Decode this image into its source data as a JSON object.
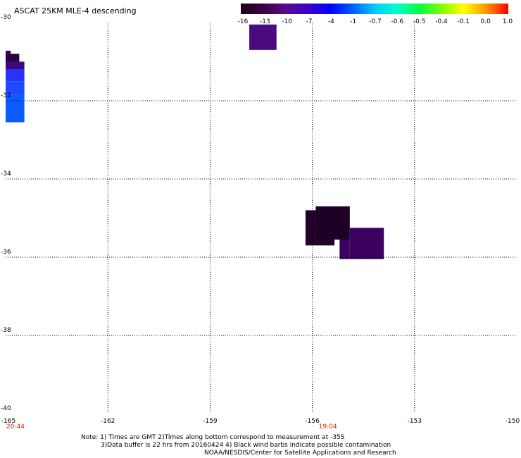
{
  "title": "ASCAT 25KM MLE-4 descending",
  "colorbar": {
    "labels": [
      "-16",
      "-13",
      "-10",
      "-7",
      "-4",
      "-1",
      "-0.7",
      "-0.6",
      "-0.5",
      "-0.4",
      "-0.1",
      "0.0",
      "1.0"
    ],
    "colors": [
      "#1a001a",
      "#3c0040",
      "#5a0a8a",
      "#3b00c8",
      "#0000ff",
      "#005aff",
      "#00c8ff",
      "#00ffc8",
      "#00ff40",
      "#80ff00",
      "#ffff00",
      "#ff9600",
      "#ff0000"
    ]
  },
  "axes": {
    "x_ticks": [
      "-165",
      "-162",
      "-159",
      "-156",
      "-153",
      "-150"
    ],
    "y_ticks": [
      "-30",
      "-32",
      "-34",
      "-36",
      "-38",
      "-40"
    ],
    "lon_range": [
      -165,
      -150
    ],
    "lat_range": [
      -40,
      -30
    ],
    "grid": "dotted"
  },
  "times": [
    {
      "label": "20:44",
      "lon": -165
    },
    {
      "label": "19:04",
      "lon": -156
    }
  ],
  "notes": {
    "line1": "Note: 1) Times are GMT 2)Times along bottom correspond to measurement at -35S",
    "line2": "3)Data buffer is 22 hrs from 20160424 4) Black wind barbs indicate possible contamination",
    "line3": "NOAA/NESDIS/Center for Satellite Applications and Research"
  },
  "map_data": {
    "cells": [
      {
        "lon0": -165.0,
        "lon1": -164.85,
        "lat0": -30.8,
        "lat1": -30.72,
        "color": "#3a0060"
      },
      {
        "lon0": -165.0,
        "lon1": -164.6,
        "lat0": -31.0,
        "lat1": -30.8,
        "color": "#2a0040"
      },
      {
        "lon0": -165.0,
        "lon1": -164.45,
        "lat0": -31.2,
        "lat1": -31.0,
        "color": "#3a0a80"
      },
      {
        "lon0": -165.0,
        "lon1": -164.45,
        "lat0": -31.5,
        "lat1": -31.2,
        "color": "#2a30ff"
      },
      {
        "lon0": -165.0,
        "lon1": -164.45,
        "lat0": -31.85,
        "lat1": -31.5,
        "color": "#1e4aff"
      },
      {
        "lon0": -165.0,
        "lon1": -164.45,
        "lat0": -32.55,
        "lat1": -31.85,
        "color": "#0a5aff"
      },
      {
        "lon0": -157.85,
        "lon1": -157.05,
        "lat0": -30.7,
        "lat1": -30.05,
        "color": "#4a0a80"
      },
      {
        "lon0": -155.9,
        "lon1": -154.9,
        "lat0": -35.55,
        "lat1": -34.7,
        "color": "#1f0026"
      },
      {
        "lon0": -156.2,
        "lon1": -155.9,
        "lat0": -35.7,
        "lat1": -34.8,
        "color": "#220028"
      },
      {
        "lon0": -155.9,
        "lon1": -155.35,
        "lat0": -35.7,
        "lat1": -35.55,
        "color": "#220028"
      },
      {
        "lon0": -154.9,
        "lon1": -153.9,
        "lat0": -36.05,
        "lat1": -35.25,
        "color": "#3c0060"
      },
      {
        "lon0": -155.2,
        "lon1": -154.9,
        "lat0": -36.05,
        "lat1": -35.55,
        "color": "#3c0060"
      }
    ]
  }
}
